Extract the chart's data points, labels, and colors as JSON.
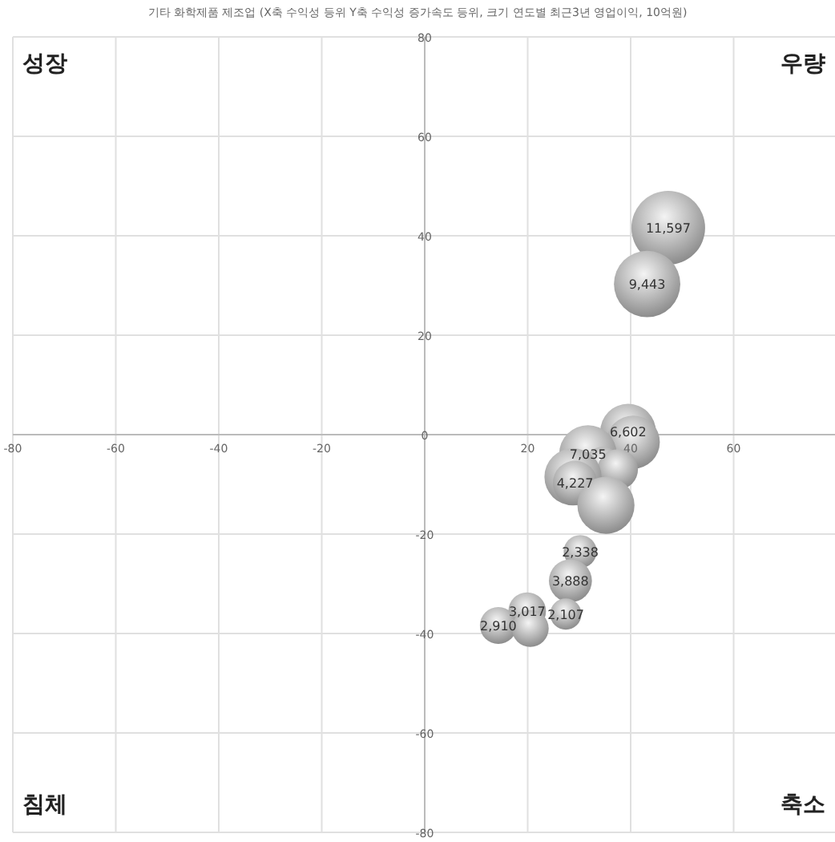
{
  "chart_data": {
    "type": "bubble",
    "title": "기타 화학제품 제조업 (X축 수익성 등위  Y축 수익성 증가속도 등위, 크기 연도별 최근3년 영업이익, 10억원)",
    "annotations": [
      "성장",
      "우량",
      "침체",
      "축소",
      {
        "text": "11,597",
        "x": 47.3,
        "y": 41.6
      },
      {
        "text": "9,443",
        "x": 43.2,
        "y": 30.3
      },
      {
        "text": "6,602",
        "x": 39.5,
        "y": 0.6
      },
      {
        "text": "7,035",
        "x": 31.7,
        "y": -3.9
      },
      {
        "text": "4,227",
        "x": 29.2,
        "y": -9.7
      },
      {
        "text": "2,338",
        "x": 30.2,
        "y": -23.5
      },
      {
        "text": "3,888",
        "x": 28.3,
        "y": -29.4
      },
      {
        "text": "3,017",
        "x": 19.9,
        "y": -35.5
      },
      {
        "text": "2,910",
        "x": 14.3,
        "y": -38.4
      },
      {
        "text": "2,107",
        "x": 27.4,
        "y": -36.1
      }
    ],
    "xlim": [
      -80,
      80
    ],
    "ylim": [
      -80,
      80
    ],
    "xticks": [
      -80,
      -60,
      -40,
      -20,
      20,
      40,
      60
    ],
    "yticks": [
      -80,
      -60,
      -40,
      -20,
      0,
      20,
      40,
      60,
      80
    ],
    "grid": true,
    "series": [
      {
        "color": "#8c8c8c",
        "x": [
          47.3,
          43.2,
          39.5,
          40.5,
          31.7,
          34.5,
          37.5,
          28.8,
          29.2,
          35.2,
          30.2,
          28.3,
          19.9,
          14.3,
          20.5,
          27.4
        ],
        "values": [
          41.6,
          30.3,
          0.6,
          -1.5,
          -3.9,
          -6.1,
          -7,
          -8.5,
          -9.7,
          -14.2,
          -23.5,
          -29.4,
          -35.5,
          -38.4,
          -39,
          -36.1
        ],
        "sizes": [
          1,
          0.81,
          0.57,
          0.52,
          0.61,
          0.24,
          0.3,
          0.6,
          0.36,
          0.6,
          0.2,
          0.34,
          0.26,
          0.25,
          0.25,
          0.18
        ]
      }
    ]
  }
}
